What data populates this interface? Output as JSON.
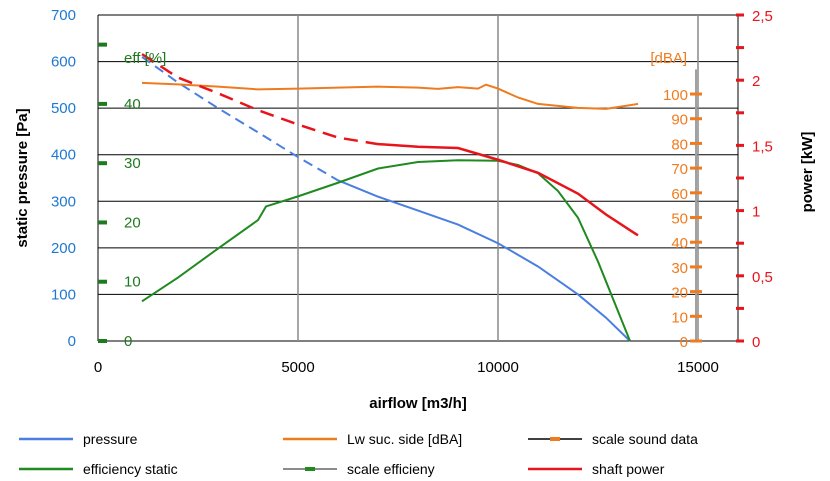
{
  "chart_data": {
    "type": "line",
    "xlabel": "airflow [m3/h]",
    "xlim": [
      0,
      16000
    ],
    "xticks": [
      0,
      5000,
      10000,
      15000
    ],
    "xtick_labels": [
      "0",
      "5000",
      "10000",
      "15000"
    ],
    "grid": true,
    "legend_position": "bottom",
    "axes": {
      "pressure": {
        "label": "static pressure [Pa]",
        "range": [
          0,
          700
        ],
        "ticks": [
          0,
          100,
          200,
          300,
          400,
          500,
          600,
          700
        ],
        "tick_labels": [
          "0",
          "100",
          "200",
          "300",
          "400",
          "500",
          "600",
          "700"
        ],
        "color": "#1f78d1"
      },
      "efficiency": {
        "label": "eff [%]",
        "range": [
          0,
          55
        ],
        "ticks": [
          0,
          10,
          20,
          30,
          40
        ],
        "tick_labels": [
          "0",
          "10",
          "20",
          "30",
          "40"
        ],
        "color": "#1f7a1f"
      },
      "sound": {
        "label": "[dBA]",
        "range": [
          0,
          132
        ],
        "ticks": [
          0,
          10,
          20,
          30,
          40,
          50,
          60,
          70,
          80,
          90,
          100
        ],
        "tick_labels": [
          "0",
          "10",
          "20",
          "30",
          "40",
          "50",
          "60",
          "70",
          "80",
          "90",
          "100"
        ],
        "color": "#f07b1e"
      },
      "power": {
        "label": "power [kW]",
        "range": [
          0,
          2.5
        ],
        "ticks": [
          0,
          0.5,
          1,
          1.5,
          2,
          2.5
        ],
        "tick_labels": [
          "0",
          "0,5",
          "1",
          "1,5",
          "2",
          "2,5"
        ],
        "color": "#e8141b"
      }
    },
    "series": [
      {
        "name": "pressure",
        "axis": "pressure",
        "color": "#4a7fe0",
        "x": [
          1100,
          2000,
          3000,
          4000,
          5000,
          6000,
          7000,
          8000,
          9000,
          10000,
          11000,
          12000,
          12700,
          13300
        ],
        "values": [
          610,
          555,
          500,
          448,
          395,
          345,
          310,
          280,
          250,
          210,
          160,
          100,
          50,
          0
        ]
      },
      {
        "name": "Lw suc. side [dBA]",
        "axis": "sound",
        "color": "#f07b1e",
        "x": [
          1100,
          2000,
          3000,
          4000,
          5000,
          6000,
          7000,
          8000,
          8500,
          9000,
          9500,
          9700,
          10000,
          10500,
          11000,
          12000,
          12700,
          13500
        ],
        "values": [
          104.5,
          103.9,
          103,
          101.9,
          102.2,
          102.6,
          103,
          102.6,
          102.1,
          102.8,
          102.2,
          103.8,
          102.2,
          98.6,
          96,
          94.4,
          94,
          96
        ]
      },
      {
        "name": "efficiency static",
        "axis": "efficiency",
        "color": "#1f8a1f",
        "x": [
          1100,
          2000,
          3000,
          4000,
          4200,
          5000,
          6000,
          7000,
          8000,
          9000,
          10000,
          10500,
          11000,
          11500,
          12000,
          12500,
          13300
        ],
        "values": [
          6.7,
          10.7,
          15.6,
          20.4,
          22.7,
          24.4,
          26.7,
          29.1,
          30.2,
          30.5,
          30.4,
          29.7,
          28.3,
          25.3,
          20.8,
          13.4,
          0
        ]
      },
      {
        "name": "shaft power",
        "axis": "power",
        "color": "#e8141b",
        "x": [
          1100,
          2000,
          3000,
          4000,
          5000,
          6000,
          7000,
          8000,
          9000,
          10000,
          11000,
          12000,
          12700,
          13500
        ],
        "values": [
          2.2,
          2.02,
          1.9,
          1.77,
          1.66,
          1.56,
          1.51,
          1.49,
          1.48,
          1.39,
          1.29,
          1.13,
          0.97,
          0.81
        ],
        "dash_until_x": 7000
      }
    ],
    "legend": [
      {
        "label": "pressure",
        "color": "#4a7fe0",
        "marker": false
      },
      {
        "label": "Lw suc. side [dBA]",
        "color": "#f07b1e",
        "marker": false
      },
      {
        "label": "scale sound data",
        "color": "#000000",
        "marker": true,
        "marker_color": "#f07b1e"
      },
      {
        "label": "efficiency static",
        "color": "#1f8a1f",
        "marker": false
      },
      {
        "label": "scale efficieny",
        "color": "#666666",
        "marker": true,
        "marker_color": "#1f8a1f"
      },
      {
        "label": "shaft power",
        "color": "#e8141b",
        "marker": false
      }
    ]
  }
}
